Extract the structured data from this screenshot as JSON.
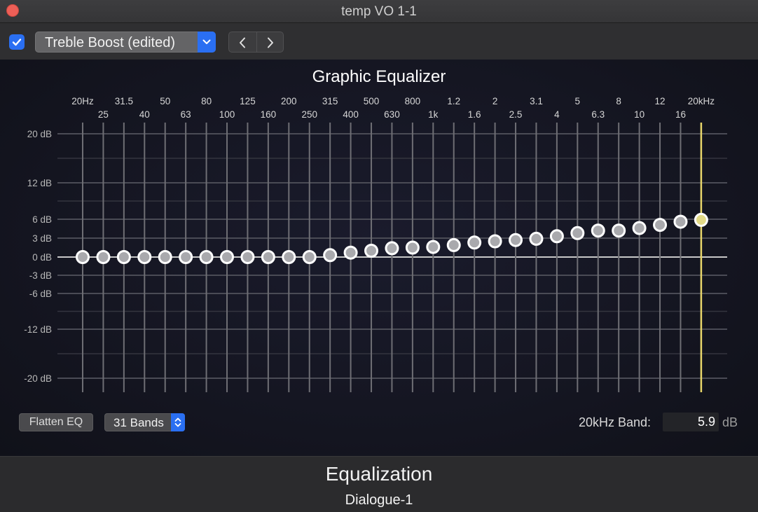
{
  "window": {
    "title": "temp VO 1-1"
  },
  "toolbar": {
    "enabled": true,
    "preset_label": "Treble Boost (edited)",
    "prev_icon": "chevron-left-icon",
    "next_icon": "chevron-right-icon"
  },
  "eq": {
    "title": "Graphic Equalizer",
    "db_ticks": [
      {
        "value": 20,
        "label": "20 dB"
      },
      {
        "value": 12,
        "label": "12 dB"
      },
      {
        "value": 6,
        "label": "6 dB"
      },
      {
        "value": 3,
        "label": "3 dB"
      },
      {
        "value": 0,
        "label": "0 dB"
      },
      {
        "value": -3,
        "label": "-3 dB"
      },
      {
        "value": -6,
        "label": "-6 dB"
      },
      {
        "value": -12,
        "label": "-12 dB"
      },
      {
        "value": -20,
        "label": "-20 dB"
      }
    ],
    "bands": [
      {
        "label": "20Hz",
        "gain": 0
      },
      {
        "label": "25",
        "gain": 0
      },
      {
        "label": "31.5",
        "gain": 0
      },
      {
        "label": "40",
        "gain": 0
      },
      {
        "label": "50",
        "gain": 0
      },
      {
        "label": "63",
        "gain": 0
      },
      {
        "label": "80",
        "gain": 0
      },
      {
        "label": "100",
        "gain": 0
      },
      {
        "label": "125",
        "gain": 0
      },
      {
        "label": "160",
        "gain": 0
      },
      {
        "label": "200",
        "gain": 0
      },
      {
        "label": "250",
        "gain": 0
      },
      {
        "label": "315",
        "gain": 0.3
      },
      {
        "label": "400",
        "gain": 0.7
      },
      {
        "label": "500",
        "gain": 1.0
      },
      {
        "label": "630",
        "gain": 1.4
      },
      {
        "label": "800",
        "gain": 1.5
      },
      {
        "label": "1k",
        "gain": 1.6
      },
      {
        "label": "1.2",
        "gain": 1.9
      },
      {
        "label": "1.6",
        "gain": 2.3
      },
      {
        "label": "2",
        "gain": 2.5
      },
      {
        "label": "2.5",
        "gain": 2.7
      },
      {
        "label": "3.1",
        "gain": 2.9
      },
      {
        "label": "4",
        "gain": 3.3
      },
      {
        "label": "5",
        "gain": 3.8
      },
      {
        "label": "6.3",
        "gain": 4.2
      },
      {
        "label": "8",
        "gain": 4.2
      },
      {
        "label": "10",
        "gain": 4.6
      },
      {
        "label": "12",
        "gain": 5.1
      },
      {
        "label": "16",
        "gain": 5.6
      },
      {
        "label": "20kHz",
        "gain": 5.9
      }
    ],
    "selected_band_index": 30,
    "colors": {
      "slider_track": "#6e6e74",
      "selected_track": "#e8d66a",
      "selected_knob": "#e3da86",
      "knob": "#a9a9ad",
      "zero_line": "#c8c8c8"
    }
  },
  "controls": {
    "flatten_label": "Flatten EQ",
    "bands_label": "31 Bands",
    "selected_band_label": "20kHz Band:",
    "selected_band_value": "5.9",
    "selected_band_unit": "dB"
  },
  "bottom": {
    "section_title": "Equalization",
    "track_name": "Dialogue-1"
  }
}
